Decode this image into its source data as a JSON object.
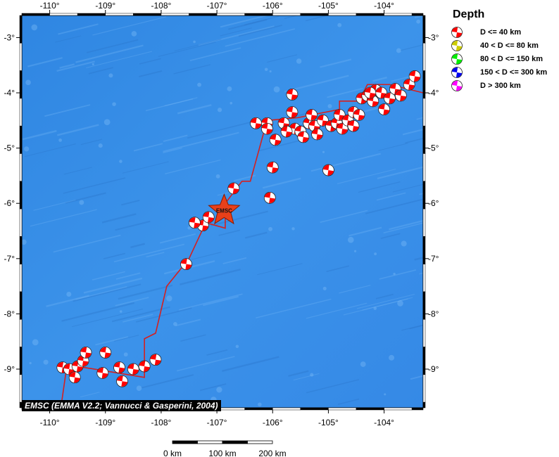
{
  "map": {
    "lon_ticks": [
      "-110°",
      "-109°",
      "-108°",
      "-107°",
      "-106°",
      "-105°",
      "-104°"
    ],
    "lat_ticks": [
      "-3°",
      "-4°",
      "-5°",
      "-6°",
      "-7°",
      "-8°",
      "-9°"
    ],
    "lon_values": [
      -110,
      -109,
      -108,
      -107,
      -106,
      -105,
      -104
    ],
    "lat_values": [
      -3,
      -4,
      -5,
      -6,
      -7,
      -8,
      -9
    ],
    "extent": {
      "lon_min": -110.5,
      "lon_max": -103.3,
      "lat_min": -9.7,
      "lat_max": -2.6
    },
    "ocean_color": "#3a8fe8",
    "plate_boundary_color": "#d42020",
    "epicenter_label": "EMSC",
    "epicenter": {
      "lon": -106.87,
      "lat": -6.13
    },
    "plate_boundary": [
      [
        -109.8,
        -9.7
      ],
      [
        -109.7,
        -9.0
      ],
      [
        -109.5,
        -8.95
      ],
      [
        -108.3,
        -9.15
      ],
      [
        -108.3,
        -8.45
      ],
      [
        -108.1,
        -8.35
      ],
      [
        -107.9,
        -7.5
      ],
      [
        -107.5,
        -7.0
      ],
      [
        -107.2,
        -6.35
      ],
      [
        -106.85,
        -6.45
      ],
      [
        -106.85,
        -6.0
      ],
      [
        -106.55,
        -5.6
      ],
      [
        -106.4,
        -5.6
      ],
      [
        -106.1,
        -4.5
      ],
      [
        -105.55,
        -4.45
      ],
      [
        -105.3,
        -4.4
      ],
      [
        -104.8,
        -4.3
      ],
      [
        -104.8,
        -4.15
      ],
      [
        -104.45,
        -4.15
      ],
      [
        -104.3,
        -3.85
      ],
      [
        -103.9,
        -3.85
      ],
      [
        -103.3,
        -4.0
      ]
    ],
    "events": [
      {
        "lon": -109.77,
        "lat": -8.97
      },
      {
        "lon": -109.65,
        "lat": -9.0
      },
      {
        "lon": -109.55,
        "lat": -9.15
      },
      {
        "lon": -109.5,
        "lat": -8.95
      },
      {
        "lon": -109.4,
        "lat": -8.85
      },
      {
        "lon": -109.35,
        "lat": -8.7
      },
      {
        "lon": -109.0,
        "lat": -8.7
      },
      {
        "lon": -109.05,
        "lat": -9.07
      },
      {
        "lon": -108.75,
        "lat": -8.97
      },
      {
        "lon": -108.7,
        "lat": -9.22
      },
      {
        "lon": -108.5,
        "lat": -9.0
      },
      {
        "lon": -108.3,
        "lat": -8.95
      },
      {
        "lon": -108.1,
        "lat": -8.83
      },
      {
        "lon": -107.55,
        "lat": -7.1
      },
      {
        "lon": -107.25,
        "lat": -6.4
      },
      {
        "lon": -107.15,
        "lat": -6.25
      },
      {
        "lon": -107.4,
        "lat": -6.35
      },
      {
        "lon": -106.7,
        "lat": -5.73
      },
      {
        "lon": -106.0,
        "lat": -5.35
      },
      {
        "lon": -106.05,
        "lat": -5.9
      },
      {
        "lon": -105.0,
        "lat": -5.4
      },
      {
        "lon": -105.65,
        "lat": -4.03
      },
      {
        "lon": -106.3,
        "lat": -4.55
      },
      {
        "lon": -106.1,
        "lat": -4.55
      },
      {
        "lon": -106.1,
        "lat": -4.65
      },
      {
        "lon": -105.95,
        "lat": -4.85
      },
      {
        "lon": -105.8,
        "lat": -4.55
      },
      {
        "lon": -105.65,
        "lat": -4.35
      },
      {
        "lon": -105.6,
        "lat": -4.65
      },
      {
        "lon": -105.5,
        "lat": -4.7
      },
      {
        "lon": -105.35,
        "lat": -4.55
      },
      {
        "lon": -105.3,
        "lat": -4.4
      },
      {
        "lon": -105.25,
        "lat": -4.6
      },
      {
        "lon": -105.2,
        "lat": -4.75
      },
      {
        "lon": -105.1,
        "lat": -4.5
      },
      {
        "lon": -104.95,
        "lat": -4.6
      },
      {
        "lon": -104.85,
        "lat": -4.55
      },
      {
        "lon": -104.8,
        "lat": -4.4
      },
      {
        "lon": -104.75,
        "lat": -4.65
      },
      {
        "lon": -104.65,
        "lat": -4.5
      },
      {
        "lon": -104.55,
        "lat": -4.35
      },
      {
        "lon": -104.45,
        "lat": -4.4
      },
      {
        "lon": -104.4,
        "lat": -4.1
      },
      {
        "lon": -104.3,
        "lat": -4.05
      },
      {
        "lon": -104.2,
        "lat": -4.15
      },
      {
        "lon": -104.15,
        "lat": -3.95
      },
      {
        "lon": -104.05,
        "lat": -4.0
      },
      {
        "lon": -104.0,
        "lat": -4.3
      },
      {
        "lon": -103.9,
        "lat": -4.1
      },
      {
        "lon": -103.8,
        "lat": -3.93
      },
      {
        "lon": -103.7,
        "lat": -4.05
      },
      {
        "lon": -103.55,
        "lat": -3.85
      },
      {
        "lon": -103.45,
        "lat": -3.7
      },
      {
        "lon": -104.55,
        "lat": -4.6
      },
      {
        "lon": -105.45,
        "lat": -4.8
      },
      {
        "lon": -105.75,
        "lat": -4.7
      },
      {
        "lon": -104.25,
        "lat": -4.0
      }
    ]
  },
  "legend": {
    "title": "Depth",
    "items": [
      {
        "label": "D <= 40 km",
        "color": "#ff0000"
      },
      {
        "label": "40 < D <= 80 km",
        "color": "#cccc00"
      },
      {
        "label": "80 < D <= 150 km",
        "color": "#00ee00"
      },
      {
        "label": "150 < D <= 300 km",
        "color": "#0000ee"
      },
      {
        "label": "D > 300 km",
        "color": "#ff00ff"
      }
    ]
  },
  "credit": "EMSC (EMMA V2.2; Vannucci & Gasperini, 2004)",
  "scale_bar": {
    "labels": [
      "0 km",
      "100 km",
      "200 km"
    ]
  }
}
